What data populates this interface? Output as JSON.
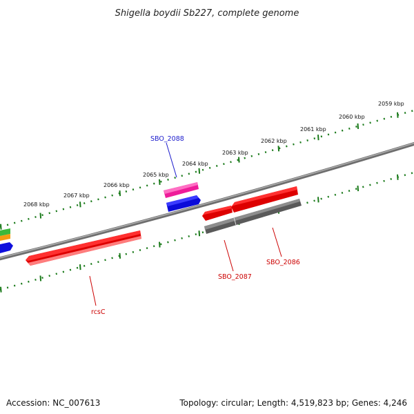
{
  "title": "Shigella boydii Sb227, complete genome",
  "footer": {
    "accession": "Accession: NC_007613",
    "topology": "Topology: circular; Length: 4,519,823 bp; Genes: 4,246"
  },
  "colors": {
    "backbone": "#8a8a8a",
    "tick": "#1a7a1a",
    "forward_label": "#1a1acc",
    "reverse_label": "#cc0000"
  },
  "kbp_labels": [
    "2068 kbp",
    "2067 kbp",
    "2066 kbp",
    "2065 kbp",
    "2064 kbp",
    "2063 kbp",
    "2062 kbp",
    "2061 kbp",
    "2060 kbp",
    "2059 kbp"
  ],
  "gene_labels": [
    {
      "name": "SBO_2088",
      "strand": "forward"
    },
    {
      "name": "rcsC",
      "strand": "reverse"
    },
    {
      "name": "SBO_2087",
      "strand": "reverse"
    },
    {
      "name": "SBO_2086",
      "strand": "reverse"
    }
  ]
}
